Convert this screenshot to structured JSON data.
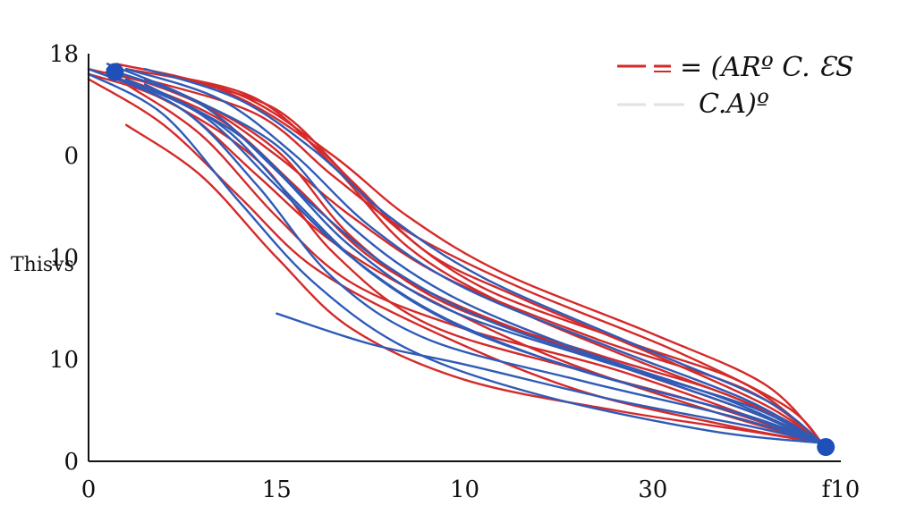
{
  "chart_data": {
    "type": "line",
    "title": "",
    "xlabel": "",
    "ylabel": "Thisvs",
    "x_tick_labels": [
      "0",
      "15",
      "10",
      "30",
      "f10"
    ],
    "y_tick_labels": [
      "0",
      "10",
      "10",
      "0",
      "18"
    ],
    "x_tick_values": [
      0,
      1,
      2,
      3,
      4
    ],
    "y_tick_values": [
      0,
      1,
      2,
      3,
      4
    ],
    "xlim": [
      0,
      4
    ],
    "ylim": [
      0,
      4
    ],
    "grid": false,
    "legend": {
      "placement": "top-right",
      "entries": [
        {
          "label": "= (ARº C. ƐS",
          "color": "#d42a2a"
        },
        {
          "label": "C.A)º",
          "color": "#dddddd"
        }
      ]
    },
    "endpoints": [
      {
        "x": 0.14,
        "y": 3.82
      },
      {
        "x": 3.92,
        "y": 0.14
      }
    ],
    "colors": {
      "red": "#d42a2a",
      "blue": "#2f5bb7",
      "marker": "#1f4fb8"
    },
    "series": [
      {
        "color": "red",
        "points": [
          [
            0,
            3.8
          ],
          [
            0.4,
            3.55
          ],
          [
            0.9,
            2.95
          ],
          [
            1.3,
            2.05
          ],
          [
            1.8,
            1.35
          ],
          [
            2.6,
            0.9
          ],
          [
            3.3,
            0.55
          ],
          [
            3.9,
            0.18
          ]
        ]
      },
      {
        "color": "red",
        "points": [
          [
            0,
            3.85
          ],
          [
            0.5,
            3.6
          ],
          [
            1.0,
            3.05
          ],
          [
            1.4,
            2.2
          ],
          [
            1.9,
            1.55
          ],
          [
            2.7,
            1.05
          ],
          [
            3.4,
            0.65
          ],
          [
            3.9,
            0.18
          ]
        ]
      },
      {
        "color": "red",
        "points": [
          [
            0.15,
            3.9
          ],
          [
            0.7,
            3.65
          ],
          [
            1.2,
            3.1
          ],
          [
            1.6,
            2.35
          ],
          [
            2.1,
            1.7
          ],
          [
            2.9,
            1.15
          ],
          [
            3.5,
            0.75
          ],
          [
            3.9,
            0.18
          ]
        ]
      },
      {
        "color": "red",
        "points": [
          [
            0.2,
            3.85
          ],
          [
            0.8,
            3.6
          ],
          [
            1.3,
            3.0
          ],
          [
            1.7,
            2.4
          ],
          [
            2.2,
            1.85
          ],
          [
            3.0,
            1.25
          ],
          [
            3.6,
            0.75
          ],
          [
            3.9,
            0.18
          ]
        ]
      },
      {
        "color": "red",
        "points": [
          [
            0.3,
            3.75
          ],
          [
            0.9,
            3.4
          ],
          [
            1.3,
            2.8
          ],
          [
            1.7,
            2.25
          ],
          [
            2.3,
            1.7
          ],
          [
            3.1,
            1.1
          ],
          [
            3.7,
            0.55
          ],
          [
            3.9,
            0.18
          ]
        ]
      },
      {
        "color": "red",
        "points": [
          [
            0.2,
            3.75
          ],
          [
            0.7,
            3.35
          ],
          [
            1.1,
            2.7
          ],
          [
            1.5,
            2.0
          ],
          [
            2.0,
            1.5
          ],
          [
            2.8,
            0.95
          ],
          [
            3.5,
            0.5
          ],
          [
            3.9,
            0.18
          ]
        ]
      },
      {
        "color": "red",
        "points": [
          [
            0.2,
            3.7
          ],
          [
            0.6,
            3.2
          ],
          [
            1.0,
            2.4
          ],
          [
            1.4,
            1.75
          ],
          [
            2.0,
            1.3
          ],
          [
            2.8,
            0.9
          ],
          [
            3.5,
            0.45
          ],
          [
            3.9,
            0.18
          ]
        ]
      },
      {
        "color": "red",
        "points": [
          [
            0,
            3.75
          ],
          [
            0.4,
            3.3
          ],
          [
            0.8,
            2.6
          ],
          [
            1.2,
            1.9
          ],
          [
            1.8,
            1.3
          ],
          [
            2.6,
            0.7
          ],
          [
            3.4,
            0.35
          ],
          [
            3.9,
            0.18
          ]
        ]
      },
      {
        "color": "red",
        "points": [
          [
            0.2,
            3.3
          ],
          [
            0.6,
            2.8
          ],
          [
            1.0,
            2.0
          ],
          [
            1.4,
            1.3
          ],
          [
            2.0,
            0.8
          ],
          [
            2.8,
            0.5
          ],
          [
            3.5,
            0.3
          ],
          [
            3.9,
            0.18
          ]
        ]
      },
      {
        "color": "red",
        "points": [
          [
            0.4,
            3.8
          ],
          [
            0.9,
            3.55
          ],
          [
            1.3,
            2.9
          ],
          [
            1.7,
            2.1
          ],
          [
            2.2,
            1.55
          ],
          [
            2.9,
            1.0
          ],
          [
            3.6,
            0.5
          ],
          [
            3.9,
            0.18
          ]
        ]
      },
      {
        "color": "red",
        "points": [
          [
            0.5,
            3.75
          ],
          [
            1.0,
            3.45
          ],
          [
            1.4,
            2.75
          ],
          [
            1.8,
            2.05
          ],
          [
            2.3,
            1.6
          ],
          [
            3.0,
            1.05
          ],
          [
            3.6,
            0.55
          ],
          [
            3.9,
            0.18
          ]
        ]
      },
      {
        "color": "red",
        "points": [
          [
            0.1,
            3.85
          ],
          [
            0.6,
            3.5
          ],
          [
            1.0,
            3.0
          ],
          [
            1.4,
            2.4
          ],
          [
            1.9,
            1.8
          ],
          [
            2.7,
            1.2
          ],
          [
            3.5,
            0.7
          ],
          [
            3.9,
            0.18
          ]
        ]
      },
      {
        "color": "red",
        "points": [
          [
            0.1,
            3.8
          ],
          [
            0.5,
            3.45
          ],
          [
            0.9,
            2.8
          ],
          [
            1.3,
            2.15
          ],
          [
            1.8,
            1.6
          ],
          [
            2.5,
            1.0
          ],
          [
            3.3,
            0.5
          ],
          [
            3.9,
            0.18
          ]
        ]
      },
      {
        "color": "blue",
        "points": [
          [
            0,
            3.85
          ],
          [
            0.5,
            3.45
          ],
          [
            0.9,
            2.7
          ],
          [
            1.3,
            1.8
          ],
          [
            1.8,
            1.2
          ],
          [
            2.6,
            0.8
          ],
          [
            3.4,
            0.45
          ],
          [
            3.9,
            0.18
          ]
        ]
      },
      {
        "color": "blue",
        "points": [
          [
            0,
            3.8
          ],
          [
            0.4,
            3.4
          ],
          [
            0.8,
            2.55
          ],
          [
            1.2,
            1.75
          ],
          [
            1.7,
            1.1
          ],
          [
            2.4,
            0.65
          ],
          [
            3.3,
            0.3
          ],
          [
            3.9,
            0.18
          ]
        ]
      },
      {
        "color": "blue",
        "points": [
          [
            0.1,
            3.85
          ],
          [
            0.6,
            3.5
          ],
          [
            1.0,
            2.85
          ],
          [
            1.4,
            2.1
          ],
          [
            1.9,
            1.5
          ],
          [
            2.7,
            1.0
          ],
          [
            3.5,
            0.55
          ],
          [
            3.9,
            0.18
          ]
        ]
      },
      {
        "color": "blue",
        "points": [
          [
            0.1,
            3.8
          ],
          [
            0.6,
            3.4
          ],
          [
            1.0,
            2.7
          ],
          [
            1.4,
            2.0
          ],
          [
            1.9,
            1.4
          ],
          [
            2.6,
            0.9
          ],
          [
            3.4,
            0.5
          ],
          [
            3.9,
            0.18
          ]
        ]
      },
      {
        "color": "blue",
        "points": [
          [
            0.2,
            3.75
          ],
          [
            0.7,
            3.3
          ],
          [
            1.1,
            2.55
          ],
          [
            1.5,
            1.85
          ],
          [
            2.0,
            1.3
          ],
          [
            2.7,
            0.85
          ],
          [
            3.5,
            0.45
          ],
          [
            3.9,
            0.18
          ]
        ]
      },
      {
        "color": "blue",
        "points": [
          [
            0.2,
            3.85
          ],
          [
            0.7,
            3.55
          ],
          [
            1.1,
            3.0
          ],
          [
            1.5,
            2.3
          ],
          [
            2.0,
            1.7
          ],
          [
            2.8,
            1.1
          ],
          [
            3.5,
            0.6
          ],
          [
            3.9,
            0.18
          ]
        ]
      },
      {
        "color": "blue",
        "points": [
          [
            0.3,
            3.85
          ],
          [
            0.8,
            3.55
          ],
          [
            1.2,
            3.05
          ],
          [
            1.6,
            2.4
          ],
          [
            2.1,
            1.8
          ],
          [
            2.9,
            1.15
          ],
          [
            3.6,
            0.6
          ],
          [
            3.9,
            0.18
          ]
        ]
      },
      {
        "color": "blue",
        "points": [
          [
            0.1,
            3.9
          ],
          [
            0.5,
            3.6
          ],
          [
            1.0,
            3.1
          ],
          [
            1.4,
            2.3
          ],
          [
            1.9,
            1.65
          ],
          [
            2.6,
            1.1
          ],
          [
            3.4,
            0.6
          ],
          [
            3.9,
            0.18
          ]
        ]
      },
      {
        "color": "blue",
        "points": [
          [
            1.0,
            1.45
          ],
          [
            1.5,
            1.15
          ],
          [
            2.0,
            0.95
          ],
          [
            2.8,
            0.6
          ],
          [
            3.5,
            0.35
          ],
          [
            3.9,
            0.18
          ]
        ]
      },
      {
        "color": "blue",
        "points": [
          [
            0.3,
            3.7
          ],
          [
            0.8,
            3.2
          ],
          [
            1.2,
            2.5
          ],
          [
            1.6,
            1.9
          ],
          [
            2.1,
            1.4
          ],
          [
            2.8,
            0.95
          ],
          [
            3.5,
            0.5
          ],
          [
            3.9,
            0.18
          ]
        ]
      }
    ]
  }
}
